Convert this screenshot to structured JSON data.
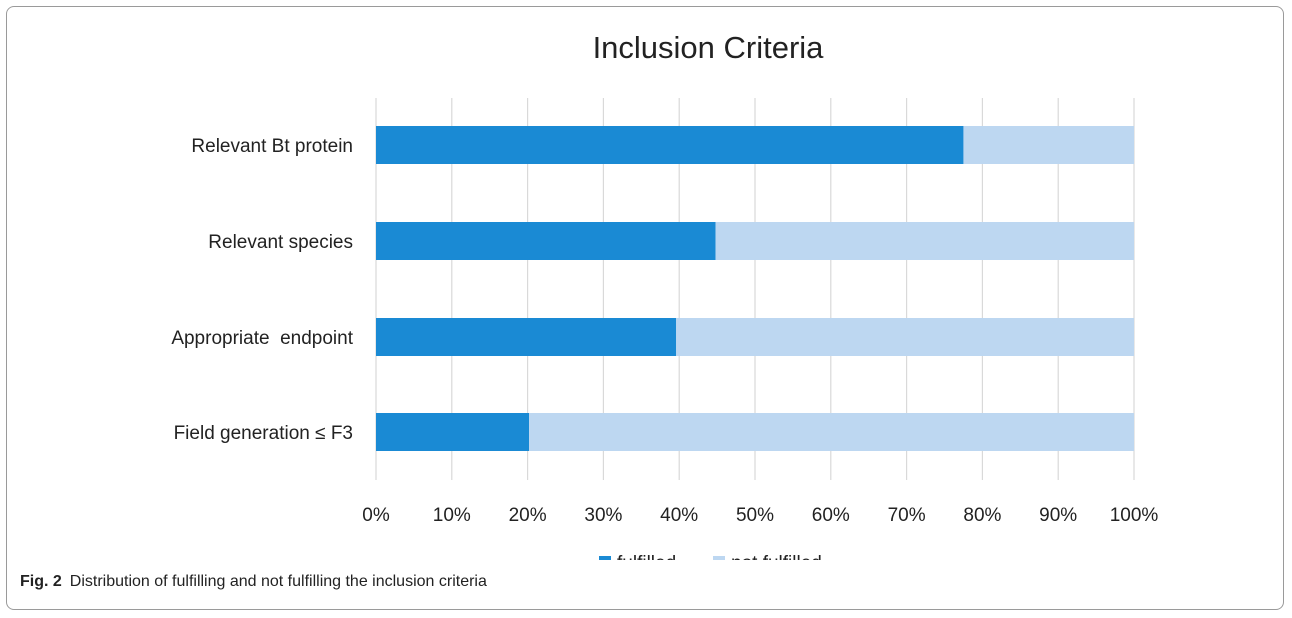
{
  "caption": {
    "label": "Fig. 2",
    "text": "Distribution of fulfilling and not fulfilling the inclusion criteria"
  },
  "colors": {
    "fulfilled": "#1a8ad4",
    "not_fulfilled": "#bdd7f1",
    "grid": "#d9d9d9"
  },
  "chart_data": {
    "type": "bar",
    "orientation": "horizontal",
    "stacked": true,
    "title": "Inclusion Criteria",
    "xlabel": "",
    "ylabel": "",
    "categories": [
      "Relevant Bt protein",
      "Relevant species",
      "Appropriate  endpoint",
      "Field generation ≤ F3"
    ],
    "series": [
      {
        "name": "fulfilled",
        "values": [
          77.5,
          44.8,
          39.6,
          20.2
        ]
      },
      {
        "name": "not fulfilled",
        "values": [
          22.5,
          55.2,
          60.4,
          79.8
        ]
      }
    ],
    "xlim": [
      0,
      100
    ],
    "xticks": [
      "0%",
      "10%",
      "20%",
      "30%",
      "40%",
      "50%",
      "60%",
      "70%",
      "80%",
      "90%",
      "100%"
    ],
    "grid": true,
    "legend_position": "bottom"
  }
}
